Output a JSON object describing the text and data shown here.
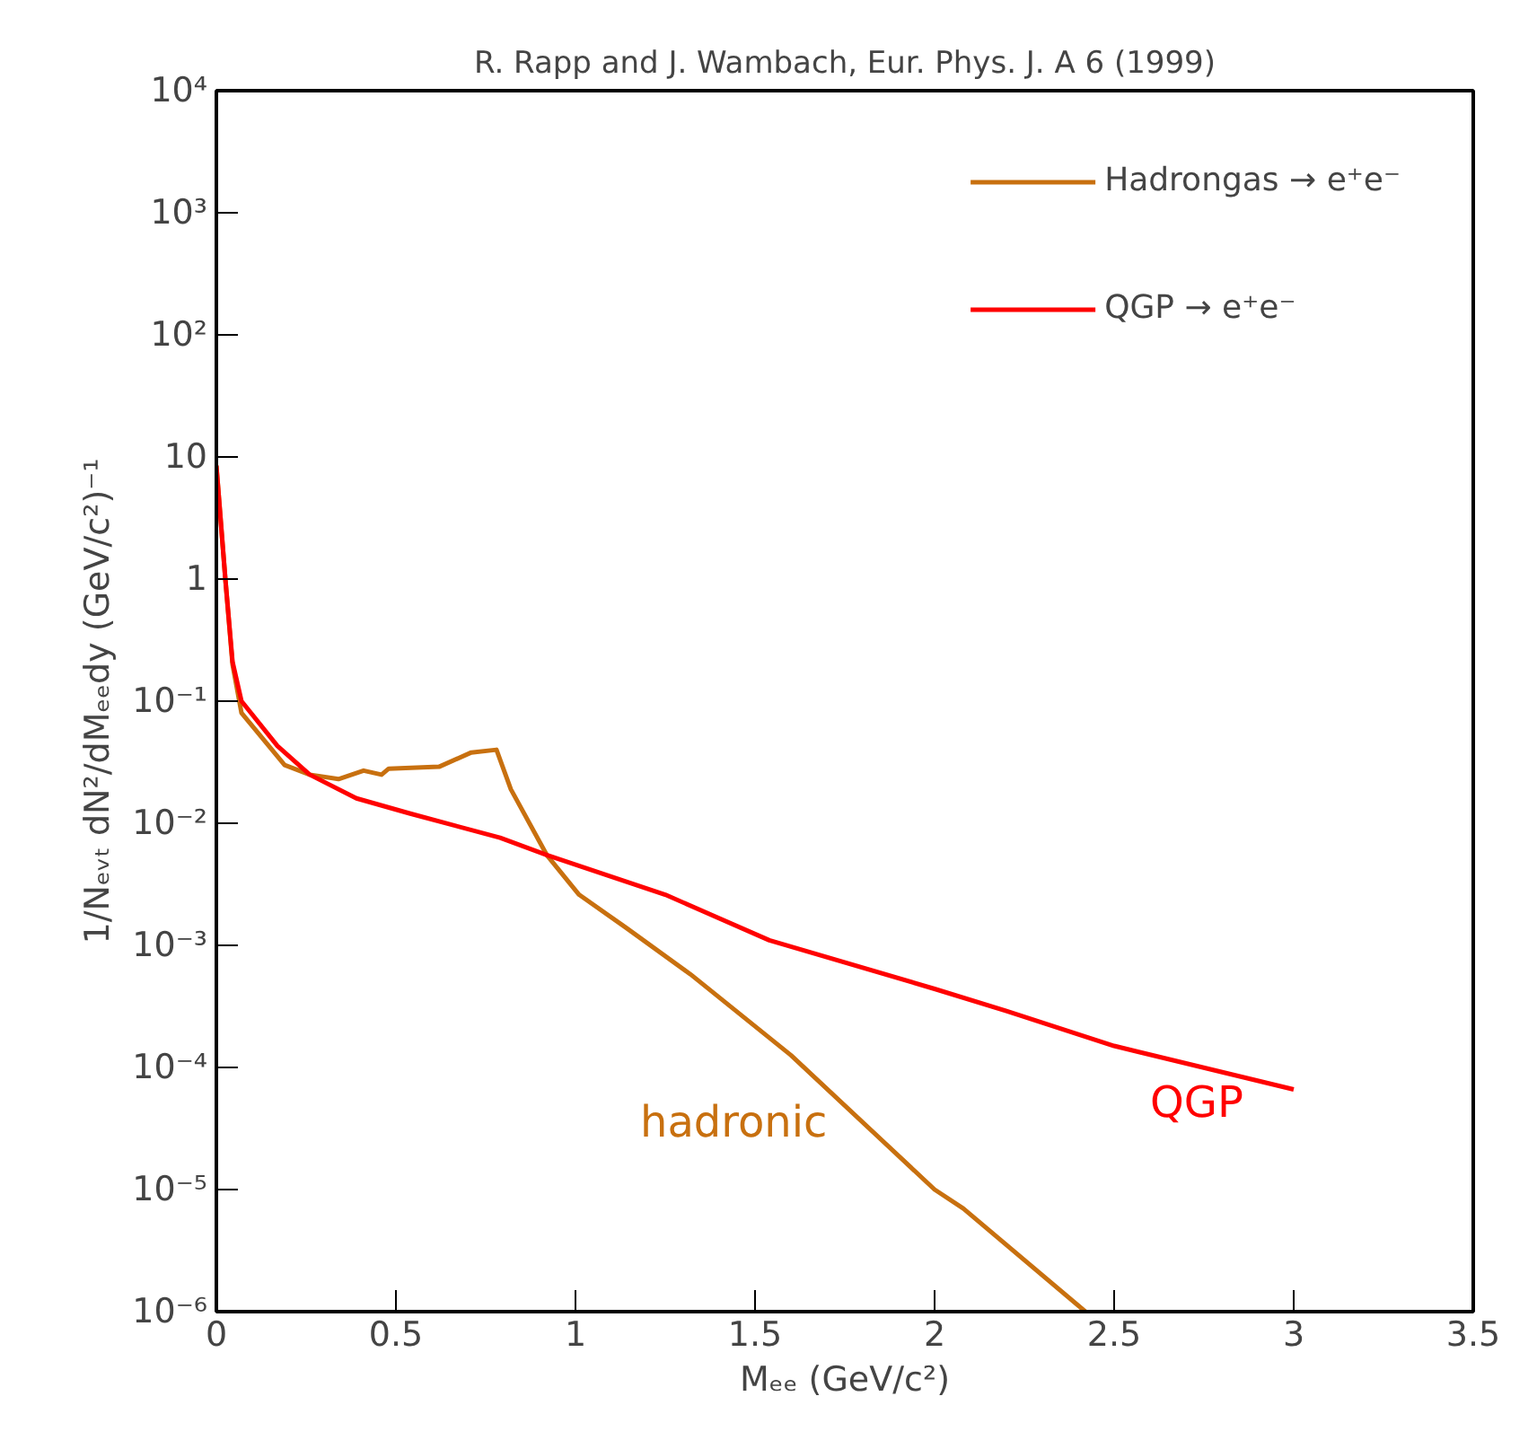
{
  "chart_data": {
    "type": "line",
    "title": "R. Rapp and J. Wambach, Eur. Phys. J. A 6 (1999)",
    "xlabel": "Mₑₑ (GeV/c²)",
    "ylabel": "1/Nₑᵥₜ dN²/dMₑₑdy (GeV/c²)⁻¹",
    "log": "y",
    "grid": false,
    "legend": "top right",
    "line_style": "solid",
    "marker": "none",
    "xlim": [
      0,
      3.5
    ],
    "xticks": [
      0,
      0.5,
      1,
      1.5,
      2,
      2.5,
      3,
      3.5
    ],
    "ylim": [
      1e-06,
      10000
    ],
    "yticks": [
      {
        "value": 1e-06,
        "label": "10⁻⁶"
      },
      {
        "value": 1e-05,
        "label": "10⁻⁵"
      },
      {
        "value": 0.0001,
        "label": "10⁻⁴"
      },
      {
        "value": 0.001,
        "label": "10⁻³"
      },
      {
        "value": 0.01,
        "label": "10⁻²"
      },
      {
        "value": 0.1,
        "label": "10⁻¹"
      },
      1,
      10,
      {
        "value": 100,
        "label": "10²"
      },
      {
        "value": 1000,
        "label": "10³"
      },
      {
        "value": 10000,
        "label": "10⁴"
      }
    ],
    "series": [
      {
        "name": "Hadrongas → e⁺e⁻",
        "color": "#c8700f",
        "x": [
          0,
          0.025,
          0.045,
          0.07,
          0.19,
          0.26,
          0.34,
          0.41,
          0.46,
          0.48,
          0.62,
          0.71,
          0.78,
          0.82,
          0.92,
          1.01,
          1.14,
          1.32,
          1.6,
          2.0,
          2.08,
          2.42
        ],
        "values": [
          8.5,
          1,
          0.2,
          0.08,
          0.03,
          0.025,
          0.023,
          0.027,
          0.025,
          0.028,
          0.029,
          0.038,
          0.04,
          0.019,
          0.0055,
          0.0026,
          0.0014,
          0.00058,
          0.000126,
          1e-05,
          7e-06,
          1e-06
        ]
      },
      {
        "name": "QGP → e⁺e⁻",
        "color": "#ff0000",
        "x": [
          0,
          0.025,
          0.045,
          0.07,
          0.17,
          0.26,
          0.39,
          0.54,
          0.79,
          0.92,
          1.25,
          1.54,
          2.0,
          2.2,
          2.5,
          3.0
        ],
        "values": [
          8.5,
          1,
          0.21,
          0.1,
          0.043,
          0.025,
          0.016,
          0.012,
          0.0076,
          0.0055,
          0.0026,
          0.0011,
          0.00044,
          0.00029,
          0.00015,
          6.6e-05
        ]
      }
    ],
    "annotations": [
      "hadronic",
      "QGP"
    ]
  }
}
